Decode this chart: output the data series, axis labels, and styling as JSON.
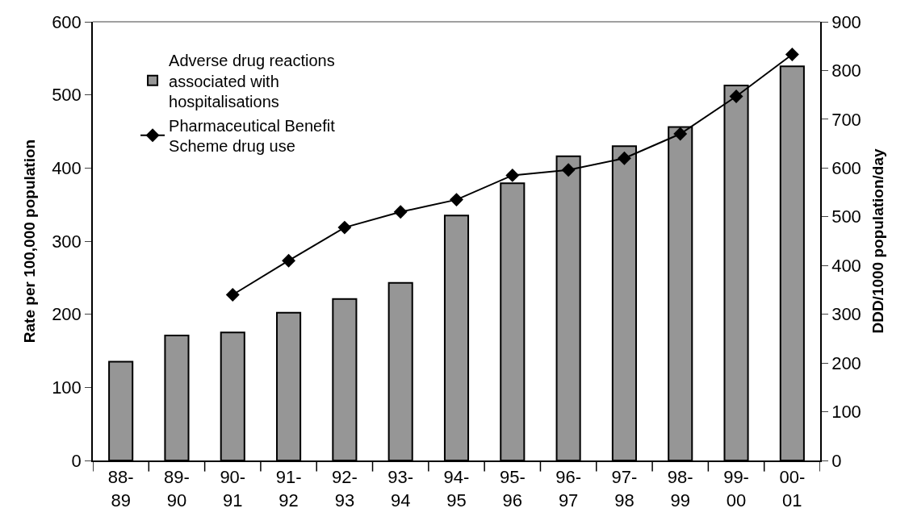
{
  "chart_data": {
    "type": "bar",
    "ylabel": "Rate per 100,000 population",
    "y2label": "DDD/1000 population/day",
    "categories": [
      "88-89",
      "89-90",
      "90-91",
      "91-92",
      "92-93",
      "93-94",
      "94-95",
      "95-96",
      "96-97",
      "97-98",
      "98-99",
      "99-00",
      "00-01"
    ],
    "series": [
      {
        "name": "Adverse drug reactions associated with hospitalisations",
        "color": "#969696",
        "values": [
          135,
          171,
          175,
          202,
          221,
          243,
          335,
          379,
          416,
          430,
          456,
          513,
          539
        ]
      },
      {
        "name": "Pharmaceutical Benefit Scheme drug use",
        "type": "line",
        "axis": "y2",
        "color": "#000000",
        "marker": "diamond",
        "values": [
          null,
          null,
          340,
          410,
          478,
          510,
          535,
          585,
          596,
          620,
          670,
          747,
          833
        ]
      }
    ],
    "ylim": [
      0,
      600
    ],
    "yticks": [
      0,
      100,
      200,
      300,
      400,
      500,
      600
    ],
    "y2lim": [
      0,
      900
    ],
    "y2ticks": [
      0,
      100,
      200,
      300,
      400,
      500,
      600,
      700,
      800,
      900
    ],
    "legend": "top left"
  }
}
